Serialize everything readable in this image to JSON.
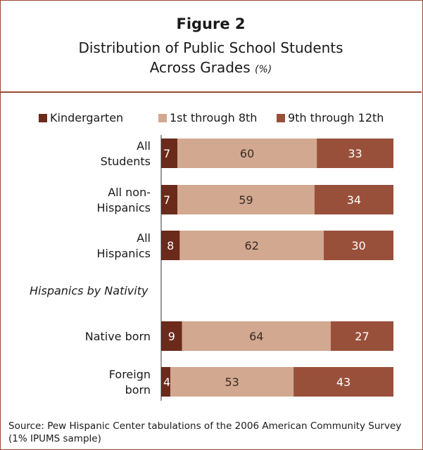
{
  "figure": {
    "number": "Figure 2",
    "title_line1": "Distribution of Public School Students",
    "title_line2": "Across Grades",
    "title_unit": "(%)"
  },
  "source": "Source: Pew Hispanic Center tabulations of the 2006 American Community Survey (1% IPUMS sample)",
  "colors": {
    "kindergarten": "#6b2a1a",
    "grades1to8": "#d2a890",
    "grades9to12": "#99503a",
    "border": "#9a4a35"
  },
  "chart_data": {
    "type": "bar",
    "orientation": "horizontal",
    "stacked": true,
    "legend_position": "top",
    "xlim": [
      0,
      100
    ],
    "categories": [
      [
        "All",
        "Students"
      ],
      [
        "All non-",
        "Hispanics"
      ],
      [
        "All",
        "Hispanics"
      ],
      [
        "Native born"
      ],
      [
        "Foreign",
        "born"
      ]
    ],
    "group_label": "Hispanics by Nativity",
    "series": [
      {
        "name": "Kindergarten",
        "values": [
          7,
          7,
          8,
          9,
          4
        ]
      },
      {
        "name": "1st through 8th",
        "values": [
          60,
          59,
          62,
          64,
          53
        ]
      },
      {
        "name": "9th through 12th",
        "values": [
          33,
          34,
          30,
          27,
          43
        ]
      }
    ]
  }
}
